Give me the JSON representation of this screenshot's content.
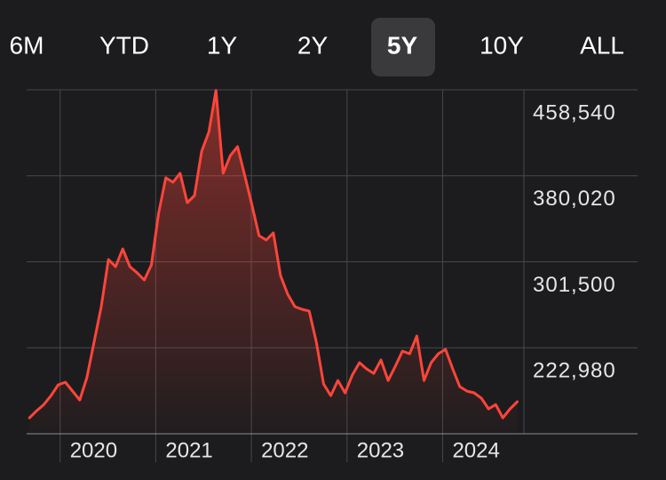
{
  "tabs": [
    "6M",
    "YTD",
    "1Y",
    "2Y",
    "5Y",
    "10Y",
    "ALL"
  ],
  "selected_tab": 4,
  "chart_data": {
    "type": "area",
    "color": "#ff453a",
    "x": [
      2019.68,
      2019.755,
      2019.83,
      2019.905,
      2019.98,
      2020.055,
      2020.13,
      2020.205,
      2020.28,
      2020.355,
      2020.43,
      2020.505,
      2020.58,
      2020.655,
      2020.73,
      2020.805,
      2020.88,
      2020.955,
      2021.03,
      2021.105,
      2021.18,
      2021.255,
      2021.33,
      2021.405,
      2021.48,
      2021.555,
      2021.63,
      2021.705,
      2021.78,
      2021.855,
      2021.93,
      2022.005,
      2022.08,
      2022.155,
      2022.23,
      2022.305,
      2022.38,
      2022.455,
      2022.53,
      2022.605,
      2022.68,
      2022.755,
      2022.83,
      2022.905,
      2022.98,
      2023.055,
      2023.13,
      2023.205,
      2023.28,
      2023.355,
      2023.43,
      2023.505,
      2023.58,
      2023.655,
      2023.73,
      2023.805,
      2023.88,
      2023.955,
      2024.03,
      2024.105,
      2024.18,
      2024.255,
      2024.33,
      2024.405,
      2024.48,
      2024.555,
      2024.63,
      2024.705,
      2024.78
    ],
    "values": [
      159000,
      165500,
      171200,
      179300,
      189100,
      191500,
      183400,
      175300,
      195600,
      228000,
      260500,
      303500,
      297000,
      313300,
      297000,
      291400,
      284900,
      298700,
      345700,
      378200,
      374100,
      382300,
      355500,
      362000,
      402500,
      420000,
      458000,
      382300,
      398500,
      406600,
      380600,
      353800,
      325400,
      321400,
      327900,
      288900,
      271900,
      260500,
      258100,
      256500,
      228000,
      189900,
      179300,
      193100,
      181800,
      198000,
      209400,
      203700,
      199600,
      211800,
      193100,
      206100,
      219900,
      217500,
      233700,
      193100,
      209400,
      217500,
      221600,
      203700,
      187500,
      183400,
      181800,
      176900,
      167200,
      171200,
      159000,
      167200,
      173700
    ],
    "xlim": [
      2019.65,
      2024.85
    ],
    "xticks": [
      2020,
      2021,
      2022,
      2023,
      2024
    ],
    "ylim": [
      144460,
      458540
    ],
    "yticks": [
      {
        "value": 458540,
        "label": "458,540"
      },
      {
        "value": 380020,
        "label": "380,020"
      },
      {
        "value": 301500,
        "label": "301,500"
      },
      {
        "value": 222980,
        "label": "222,980"
      }
    ],
    "grid": true
  }
}
